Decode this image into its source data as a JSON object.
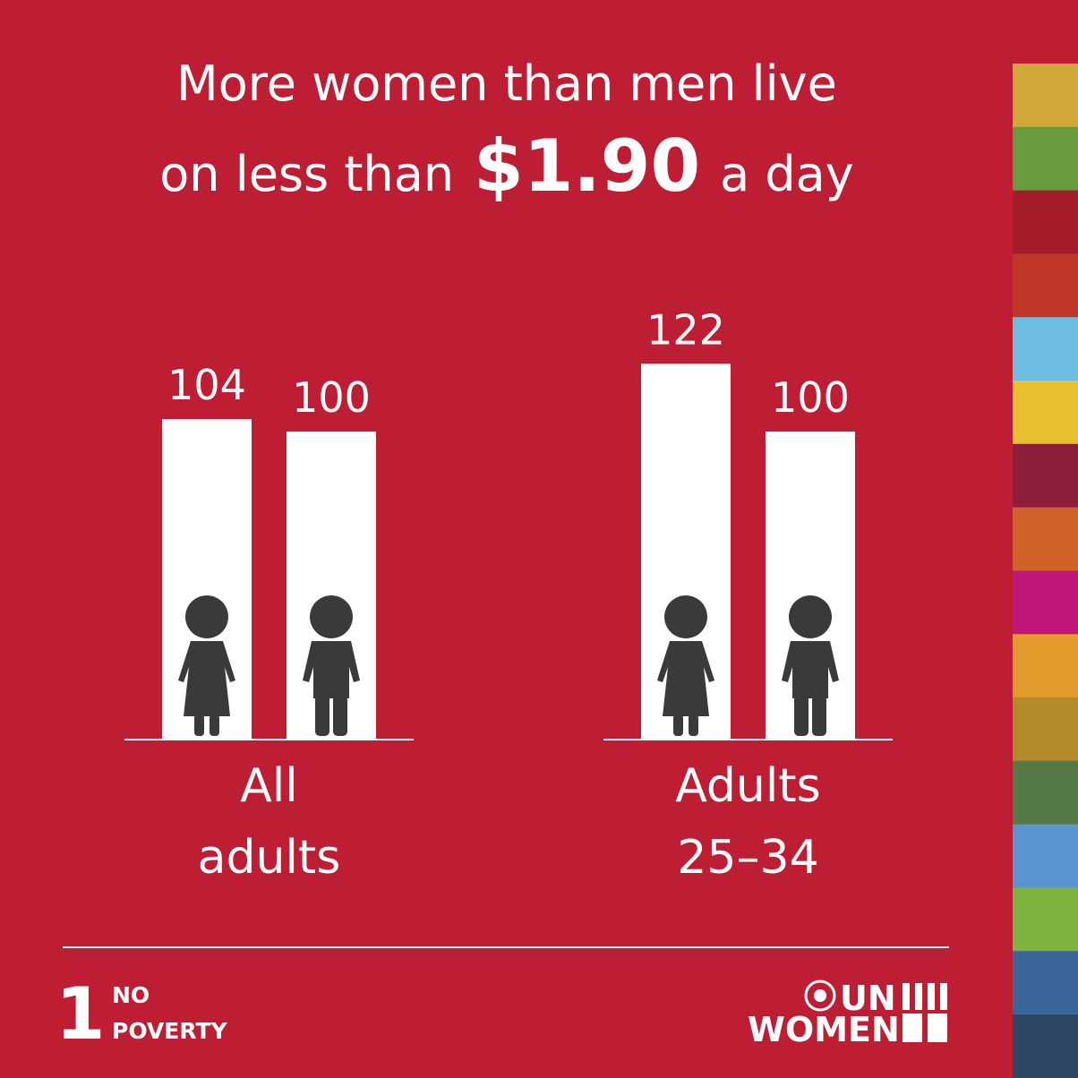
{
  "chart_data": {
    "type": "bar",
    "title": {
      "line1": "More women than men live",
      "line2_start": "on less than",
      "highlight": "$1.90",
      "line2_end": "a day"
    },
    "categories": [
      "All adults",
      "Adults 25–34"
    ],
    "series": [
      {
        "color": "#ffffff",
        "values": [
          104,
          122
        ]
      },
      {
        "color": "#ffffff",
        "values": [
          100,
          100
        ]
      }
    ]
  },
  "footer": {
    "goal_number": "1",
    "goal_line1": "NO",
    "goal_line2": "POVERTY",
    "logo_line1": "UN",
    "logo_line2": "WOMEN"
  }
}
